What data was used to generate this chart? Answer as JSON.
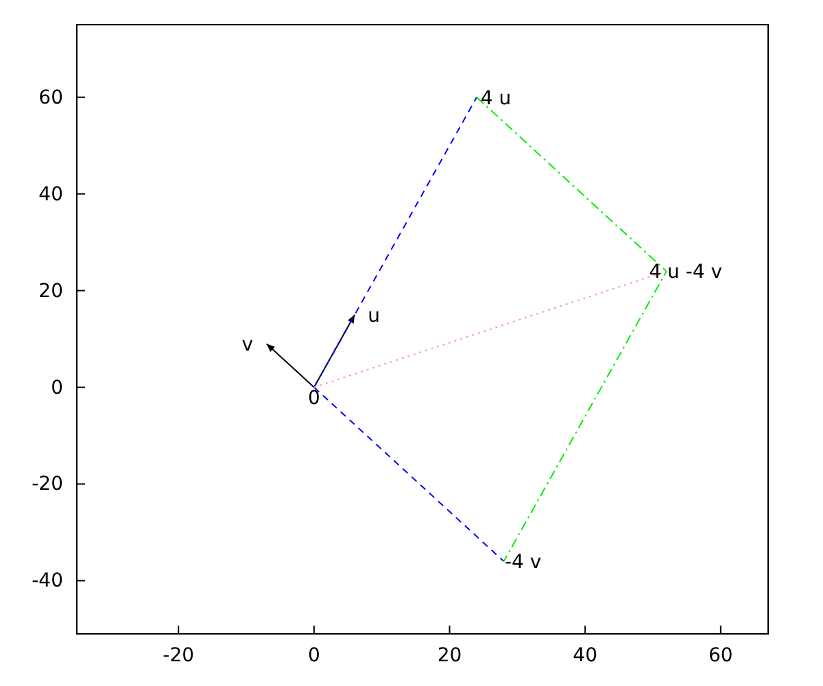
{
  "chart_data": {
    "type": "line",
    "xlim": [
      -35,
      67
    ],
    "ylim": [
      -51,
      75
    ],
    "xticks": [
      -20,
      0,
      20,
      40,
      60
    ],
    "yticks": [
      -40,
      -20,
      0,
      20,
      40,
      60
    ],
    "grid": false,
    "marker": "none",
    "series": [
      {
        "type": "line",
        "x": [
          0,
          6
        ],
        "values": [
          0,
          15
        ],
        "color": "#000000",
        "line_style": "solid"
      },
      {
        "type": "line",
        "x": [
          0,
          -7
        ],
        "values": [
          0,
          9
        ],
        "color": "#000000",
        "line_style": "solid"
      },
      {
        "type": "line",
        "x": [
          0,
          24
        ],
        "values": [
          0,
          60
        ],
        "color": "#0000ff",
        "line_style": "dashed"
      },
      {
        "type": "line",
        "x": [
          0,
          28
        ],
        "values": [
          0,
          -36
        ],
        "color": "#0000ff",
        "line_style": "dashed"
      },
      {
        "type": "line",
        "x": [
          24,
          52,
          28
        ],
        "values": [
          60,
          24,
          -36
        ],
        "color": "#00ee00",
        "line_style": "dashdot"
      },
      {
        "type": "line",
        "x": [
          0,
          52
        ],
        "values": [
          0,
          24
        ],
        "color": "#ff9999",
        "line_style": "dotted"
      }
    ],
    "annotations": [
      {
        "text": "0",
        "x": 0,
        "y": 0
      },
      {
        "text": "u",
        "x": 6,
        "y": 15
      },
      {
        "text": "v",
        "x": -7,
        "y": 9
      },
      {
        "text": "4 u",
        "x": 24,
        "y": 60
      },
      {
        "text": "4 u -4 v",
        "x": 52,
        "y": 24
      },
      {
        "text": "-4 v",
        "x": 28,
        "y": -36
      }
    ]
  }
}
